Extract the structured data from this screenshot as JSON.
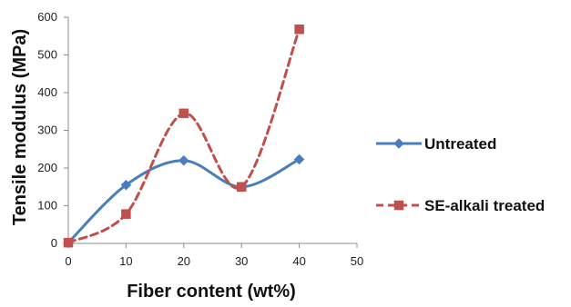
{
  "chart_data": {
    "type": "line",
    "title": "",
    "xlabel": "Fiber content (wt%)",
    "ylabel": "Tensile modulus (MPa)",
    "xlim": [
      0,
      50
    ],
    "ylim": [
      0,
      600
    ],
    "x_ticks": [
      "0",
      "10",
      "20",
      "30",
      "40",
      "50"
    ],
    "y_ticks": [
      "0",
      "100",
      "200",
      "300",
      "400",
      "500",
      "600"
    ],
    "grid": false,
    "legend_position": "right",
    "series": [
      {
        "name": "Untreated",
        "x": [
          0,
          10,
          20,
          30,
          40
        ],
        "values": [
          2,
          155,
          220,
          150,
          223
        ],
        "color": "#4A7EBB",
        "marker": "diamond",
        "line_style": "solid",
        "smooth": true
      },
      {
        "name": "SE-alkali treated",
        "x": [
          0,
          10,
          20,
          30,
          40
        ],
        "values": [
          2,
          78,
          345,
          150,
          568
        ],
        "color": "#C0504D",
        "marker": "square",
        "line_style": "dashed",
        "smooth": true
      }
    ]
  }
}
